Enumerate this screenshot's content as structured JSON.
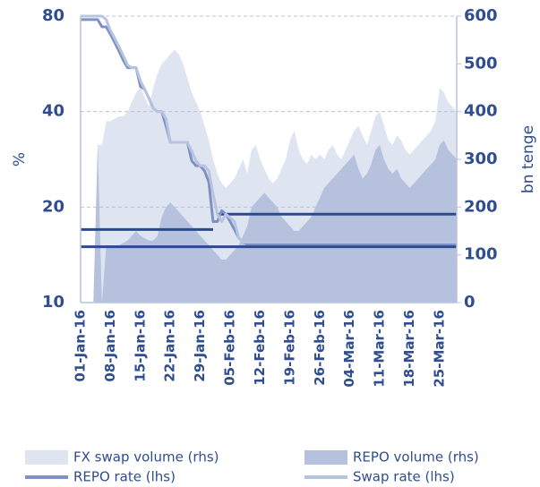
{
  "chart_data": {
    "type": "line",
    "y_label": "%",
    "y2_label": "bn tenge",
    "categories": [
      "01-Jan-16",
      null,
      null,
      null,
      null,
      null,
      null,
      "08-Jan-16",
      null,
      null,
      null,
      null,
      null,
      null,
      "15-Jan-16",
      null,
      null,
      null,
      null,
      null,
      null,
      "22-Jan-16",
      null,
      null,
      null,
      null,
      null,
      null,
      "29-Jan-16",
      null,
      null,
      null,
      null,
      null,
      null,
      "05-Feb-16",
      null,
      null,
      null,
      null,
      null,
      null,
      "12-Feb-16",
      null,
      null,
      null,
      null,
      null,
      null,
      "19-Feb-16",
      null,
      null,
      null,
      null,
      null,
      null,
      "26-Feb-16",
      null,
      null,
      null,
      null,
      null,
      null,
      "04-Mar-16",
      null,
      null,
      null,
      null,
      null,
      null,
      "11-Mar-16",
      null,
      null,
      null,
      null,
      null,
      null,
      "18-Mar-16",
      null,
      null,
      null,
      null,
      null,
      null,
      "25-Mar-16",
      null,
      null,
      null,
      null
    ],
    "ylim": [
      10,
      80
    ],
    "yticks": [
      10,
      20,
      40,
      80
    ],
    "ylog": true,
    "y2lim": [
      0,
      600
    ],
    "y2ticks": [
      0,
      100,
      200,
      300,
      400,
      500,
      600
    ],
    "grid": true,
    "legend": "bottom",
    "series": [
      {
        "name": "FX swap volume (rhs)",
        "type": "area",
        "axis": "y2",
        "color": "#dfe4f1",
        "values": [
          0,
          0,
          0,
          0,
          330,
          330,
          380,
          380,
          385,
          390,
          390,
          400,
          420,
          440,
          450,
          430,
          410,
          450,
          480,
          500,
          510,
          520,
          530,
          520,
          500,
          470,
          440,
          420,
          400,
          370,
          340,
          300,
          270,
          250,
          240,
          250,
          260,
          280,
          300,
          270,
          320,
          330,
          300,
          280,
          260,
          250,
          260,
          280,
          300,
          340,
          360,
          320,
          300,
          290,
          310,
          300,
          310,
          300,
          320,
          330,
          310,
          300,
          320,
          340,
          360,
          370,
          350,
          330,
          360,
          390,
          400,
          370,
          340,
          330,
          350,
          340,
          320,
          310,
          320,
          330,
          340,
          350,
          360,
          380,
          450,
          440,
          420,
          410,
          400
        ]
      },
      {
        "name": "REPO volume (rhs)",
        "type": "area",
        "axis": "y2",
        "color": "#b6c2dd",
        "values": [
          0,
          0,
          0,
          0,
          330,
          0,
          120,
          120,
          120,
          120,
          125,
          130,
          140,
          150,
          140,
          135,
          130,
          130,
          140,
          180,
          200,
          210,
          200,
          190,
          180,
          170,
          160,
          150,
          140,
          130,
          120,
          110,
          100,
          90,
          90,
          100,
          110,
          120,
          140,
          160,
          200,
          210,
          220,
          230,
          220,
          210,
          200,
          180,
          170,
          160,
          150,
          150,
          160,
          170,
          180,
          200,
          220,
          240,
          250,
          260,
          270,
          280,
          290,
          300,
          310,
          280,
          260,
          270,
          290,
          320,
          330,
          300,
          280,
          270,
          280,
          260,
          250,
          240,
          250,
          260,
          270,
          280,
          290,
          300,
          330,
          340,
          320,
          310,
          300
        ]
      },
      {
        "type": "line",
        "color": "#2b4a90",
        "values": [
          17,
          17,
          17,
          17,
          17,
          17,
          17,
          17,
          17,
          17,
          17,
          17,
          17,
          17,
          17,
          17,
          17,
          17,
          17,
          17,
          17,
          17,
          17,
          17,
          17,
          17,
          17,
          17,
          17,
          17,
          17,
          17,
          null,
          null,
          null,
          null,
          null,
          null,
          null,
          null,
          null,
          null,
          null,
          null,
          null,
          null,
          null,
          null,
          null,
          null,
          null,
          null,
          null,
          null,
          null,
          null,
          null,
          null,
          null,
          null,
          null,
          null,
          null,
          null,
          null,
          null,
          null,
          null,
          null,
          null,
          null,
          null,
          null,
          null,
          null,
          null,
          null,
          null,
          null,
          null,
          null,
          null,
          null,
          null,
          null,
          null,
          null,
          null,
          null
        ]
      },
      {
        "type": "line",
        "color": "#2b4a90",
        "values": [
          null,
          null,
          null,
          null,
          null,
          null,
          null,
          null,
          null,
          null,
          null,
          null,
          null,
          null,
          null,
          null,
          null,
          null,
          null,
          null,
          null,
          null,
          null,
          null,
          null,
          null,
          null,
          null,
          null,
          null,
          null,
          null,
          19,
          19,
          19,
          19,
          19,
          19,
          19,
          19,
          19,
          19,
          19,
          19,
          19,
          19,
          19,
          19,
          19,
          19,
          19,
          19,
          19,
          19,
          19,
          19,
          19,
          19,
          19,
          19,
          19,
          19,
          19,
          19,
          19,
          19,
          19,
          19,
          19,
          19,
          19,
          19,
          19,
          19,
          19,
          19,
          19,
          19,
          19,
          19,
          19,
          19,
          19,
          19,
          19,
          19,
          19,
          19,
          19
        ]
      },
      {
        "type": "line",
        "color": "#2b4a90",
        "values": [
          15,
          15,
          15,
          15,
          15,
          15,
          15,
          15,
          15,
          15,
          15,
          15,
          15,
          15,
          15,
          15,
          15,
          15,
          15,
          15,
          15,
          15,
          15,
          15,
          15,
          15,
          15,
          15,
          15,
          15,
          15,
          15,
          15,
          15,
          15,
          15,
          15,
          15,
          15,
          15,
          15,
          15,
          15,
          15,
          15,
          15,
          15,
          15,
          15,
          15,
          15,
          15,
          15,
          15,
          15,
          15,
          15,
          15,
          15,
          15,
          15,
          15,
          15,
          15,
          15,
          15,
          15,
          15,
          15,
          15,
          15,
          15,
          15,
          15,
          15,
          15,
          15,
          15,
          15,
          15,
          15,
          15,
          15,
          15,
          15,
          15,
          15,
          15,
          15
        ]
      },
      {
        "name": "REPO rate (lhs)",
        "type": "line",
        "color": "#7d92c2",
        "values": [
          78,
          78,
          78,
          78,
          78,
          74,
          74,
          70,
          66,
          62,
          58,
          55,
          55,
          55,
          48,
          47,
          44,
          41,
          40,
          40,
          36,
          32,
          32,
          32,
          32,
          32,
          28,
          27,
          27,
          26,
          24,
          18,
          18,
          19.5,
          19,
          18,
          17,
          16,
          15.5,
          15.3,
          15.3,
          15.3,
          15.3,
          15.3,
          15.3,
          15.3,
          15.3,
          15.3,
          15.3,
          15.3,
          15.3,
          15.3,
          15.3,
          15.3,
          15.3,
          15.3,
          15.3,
          15.3,
          15.3,
          15.3,
          15.3,
          15.3,
          15.3,
          15.3,
          15.3,
          15.3,
          15.3,
          15.3,
          15.3,
          15.3,
          15.3,
          15.3,
          15.3,
          15.3,
          15.3,
          15.3,
          15.3,
          15.3,
          15.3,
          15.3,
          15.3,
          15.3,
          15.3,
          15.3,
          15.3,
          15.3,
          15.3,
          15.3,
          15.3
        ]
      },
      {
        "name": "Swap rate (lhs)",
        "type": "line",
        "color": "#b7c4df",
        "values": [
          80,
          80,
          80,
          80,
          80,
          80,
          78,
          72,
          68,
          64,
          60,
          56,
          55,
          55,
          50,
          47,
          44,
          41,
          40,
          40,
          38,
          32,
          32,
          32,
          32,
          32,
          30,
          28,
          27,
          27,
          26,
          22,
          19,
          18,
          19,
          18.5,
          18,
          16,
          15.5,
          15.5,
          15.5,
          15.5,
          15.5,
          15.5,
          15.5,
          15.5,
          15.5,
          15.5,
          15.5,
          15.5,
          15.5,
          15.5,
          15.5,
          15.5,
          15.5,
          15.5,
          15.5,
          15.5,
          15.5,
          15.5,
          15.5,
          15.5,
          15.5,
          15.5,
          15.5,
          15.5,
          15.5,
          15.5,
          15.5,
          15.5,
          15.5,
          15.5,
          15.5,
          15.5,
          15.5,
          15.5,
          15.5,
          15.5,
          15.5,
          15.5,
          15.5,
          15.5,
          15.5,
          15.5,
          15.5,
          15.5,
          15.5,
          15.5,
          15.5
        ]
      }
    ]
  }
}
